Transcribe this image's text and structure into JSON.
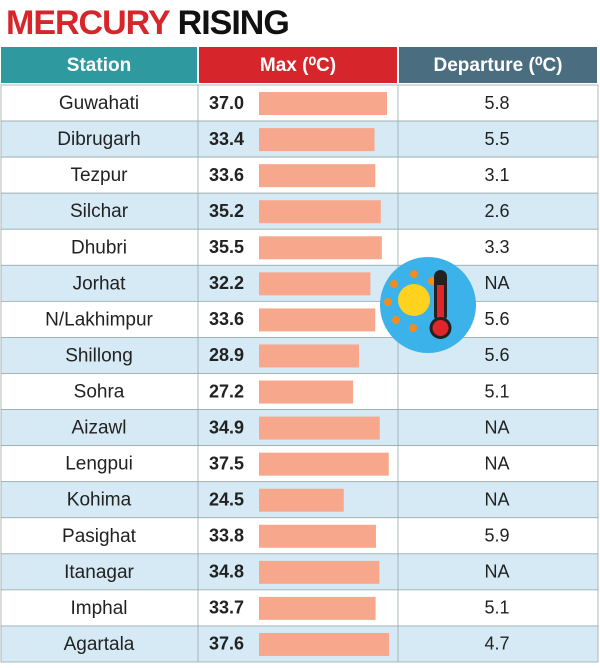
{
  "title": {
    "part1": "MERCURY",
    "part2": "RISING"
  },
  "table": {
    "headers": [
      "Station",
      "Max (⁰C)",
      "Departure (⁰C)"
    ],
    "rows": [
      {
        "station": "Guwahati",
        "max": {
          "value": 37,
          "label": "37.0"
        },
        "departure": 5.8
      },
      {
        "station": "Dibrugarh",
        "max": 33.4,
        "departure": 5.5
      },
      {
        "station": "Tezpur",
        "max": 33.6,
        "departure": 3.1
      },
      {
        "station": "Silchar",
        "max": 35.2,
        "departure": 2.6
      },
      {
        "station": "Dhubri",
        "max": 35.5,
        "departure": 3.3
      },
      {
        "station": "Jorhat",
        "max": 32.2,
        "departure": "NA"
      },
      {
        "station": "N/Lakhimpur",
        "max": 33.6,
        "departure": 5.6
      },
      {
        "station": "Shillong",
        "max": 28.9,
        "departure": 5.6
      },
      {
        "station": "Sohra",
        "max": 27.2,
        "departure": 5.1
      },
      {
        "station": "Aizawl",
        "max": 34.9,
        "departure": "NA"
      },
      {
        "station": "Lengpui",
        "max": 37.5,
        "departure": "NA"
      },
      {
        "station": "Kohima",
        "max": 24.5,
        "departure": "NA"
      },
      {
        "station": "Pasighat",
        "max": 33.8,
        "departure": 5.9
      },
      {
        "station": "Itanagar",
        "max": 34.8,
        "departure": "NA"
      },
      {
        "station": "Imphal",
        "max": 33.7,
        "departure": 5.1
      },
      {
        "station": "Agartala",
        "max": 37.6,
        "departure": 4.7
      }
    ]
  }
}
